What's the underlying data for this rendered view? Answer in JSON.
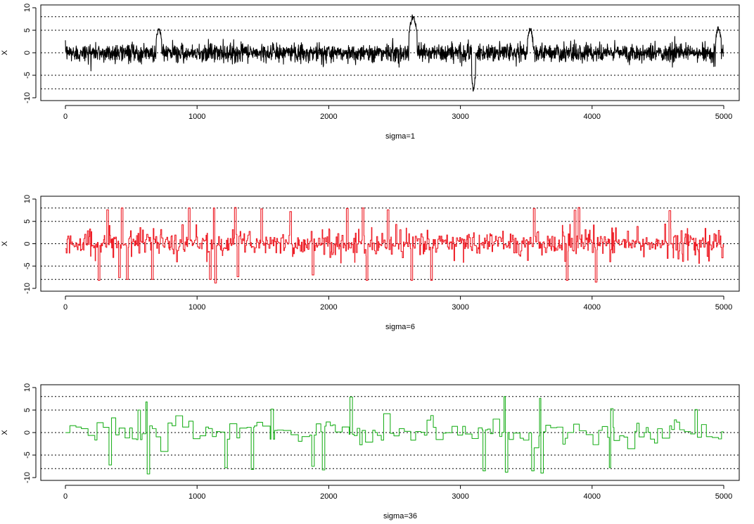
{
  "chart_data": [
    {
      "type": "line",
      "panel": "sigma=1",
      "xlabel": "sigma=1",
      "ylabel": "X",
      "color": "#000000",
      "xlim": [
        0,
        5000
      ],
      "ylim": [
        -10,
        10
      ],
      "xticks": [
        0,
        1000,
        2000,
        3000,
        4000,
        5000
      ],
      "yticks": [
        -10,
        -5,
        0,
        5,
        10
      ],
      "hlines": [
        -8,
        -5,
        0,
        5,
        8
      ],
      "noise_sd": 1.0,
      "hold_steps": 1,
      "spikes": [
        {
          "x": 710,
          "width": 40,
          "value": 5.2
        },
        {
          "x": 2640,
          "width": 60,
          "value": 7.9
        },
        {
          "x": 3100,
          "width": 30,
          "value": -8.0
        },
        {
          "x": 3530,
          "width": 40,
          "value": 5.1
        },
        {
          "x": 4960,
          "width": 40,
          "value": 5.3
        }
      ]
    },
    {
      "type": "line",
      "panel": "sigma=6",
      "xlabel": "sigma=6",
      "ylabel": "X",
      "color": "#ee1c25",
      "xlim": [
        0,
        5000
      ],
      "ylim": [
        -10,
        10
      ],
      "xticks": [
        0,
        1000,
        2000,
        3000,
        4000,
        5000
      ],
      "yticks": [
        -10,
        -5,
        0,
        5,
        10
      ],
      "hlines": [
        -8,
        -5,
        0,
        5,
        8
      ],
      "noise_sd": 1.2,
      "hold_steps": 6,
      "spikes": [
        {
          "x": 255,
          "width": 12,
          "value": -8.2
        },
        {
          "x": 320,
          "width": 12,
          "value": 7.6
        },
        {
          "x": 410,
          "width": 12,
          "value": -7.6
        },
        {
          "x": 430,
          "width": 12,
          "value": 8.0
        },
        {
          "x": 470,
          "width": 12,
          "value": -8.0
        },
        {
          "x": 660,
          "width": 12,
          "value": -8.0
        },
        {
          "x": 940,
          "width": 12,
          "value": 8.0
        },
        {
          "x": 1100,
          "width": 12,
          "value": -8.0
        },
        {
          "x": 1130,
          "width": 12,
          "value": 8.0
        },
        {
          "x": 1140,
          "width": 12,
          "value": -8.8
        },
        {
          "x": 1290,
          "width": 12,
          "value": 8.1
        },
        {
          "x": 1310,
          "width": 12,
          "value": -7.4
        },
        {
          "x": 1490,
          "width": 12,
          "value": 7.8
        },
        {
          "x": 1710,
          "width": 12,
          "value": 7.2
        },
        {
          "x": 1880,
          "width": 12,
          "value": -7.0
        },
        {
          "x": 2140,
          "width": 12,
          "value": 7.9
        },
        {
          "x": 2260,
          "width": 12,
          "value": 8.0
        },
        {
          "x": 2290,
          "width": 12,
          "value": -8.2
        },
        {
          "x": 2450,
          "width": 12,
          "value": 7.6
        },
        {
          "x": 2630,
          "width": 12,
          "value": -8.2
        },
        {
          "x": 2780,
          "width": 12,
          "value": -8.2
        },
        {
          "x": 3560,
          "width": 12,
          "value": 7.9
        },
        {
          "x": 3810,
          "width": 12,
          "value": -8.2
        },
        {
          "x": 3870,
          "width": 12,
          "value": 7.5
        },
        {
          "x": 3900,
          "width": 12,
          "value": 8.1
        },
        {
          "x": 4030,
          "width": 12,
          "value": -8.6
        },
        {
          "x": 4590,
          "width": 12,
          "value": 7.4
        }
      ]
    },
    {
      "type": "line",
      "panel": "sigma=36",
      "xlabel": "sigma=36",
      "ylabel": "X",
      "color": "#22b122",
      "xlim": [
        0,
        5000
      ],
      "ylim": [
        -10,
        10
      ],
      "xticks": [
        0,
        1000,
        2000,
        3000,
        4000,
        5000
      ],
      "yticks": [
        -10,
        -5,
        0,
        5,
        10
      ],
      "hlines": [
        -8,
        -5,
        0,
        5,
        8
      ],
      "noise_sd": 1.3,
      "hold_steps": 36,
      "spikes": [
        {
          "x": 340,
          "width": 18,
          "value": -7.2
        },
        {
          "x": 560,
          "width": 18,
          "value": 5.0
        },
        {
          "x": 620,
          "width": 18,
          "value": 6.8
        },
        {
          "x": 630,
          "width": 18,
          "value": -9.2
        },
        {
          "x": 1220,
          "width": 18,
          "value": -7.8
        },
        {
          "x": 1420,
          "width": 18,
          "value": -8.2
        },
        {
          "x": 1570,
          "width": 18,
          "value": 5.2
        },
        {
          "x": 1880,
          "width": 18,
          "value": -7.5
        },
        {
          "x": 1960,
          "width": 18,
          "value": -8.3
        },
        {
          "x": 2170,
          "width": 18,
          "value": 7.9
        },
        {
          "x": 3180,
          "width": 18,
          "value": -8.5
        },
        {
          "x": 3340,
          "width": 18,
          "value": 8.0
        },
        {
          "x": 3350,
          "width": 18,
          "value": -8.8
        },
        {
          "x": 3550,
          "width": 18,
          "value": -8.5
        },
        {
          "x": 3610,
          "width": 18,
          "value": 7.6
        },
        {
          "x": 3620,
          "width": 18,
          "value": -9.0
        },
        {
          "x": 4140,
          "width": 18,
          "value": -7.8
        },
        {
          "x": 4150,
          "width": 18,
          "value": 5.3
        },
        {
          "x": 4790,
          "width": 18,
          "value": 5.1
        }
      ]
    }
  ]
}
